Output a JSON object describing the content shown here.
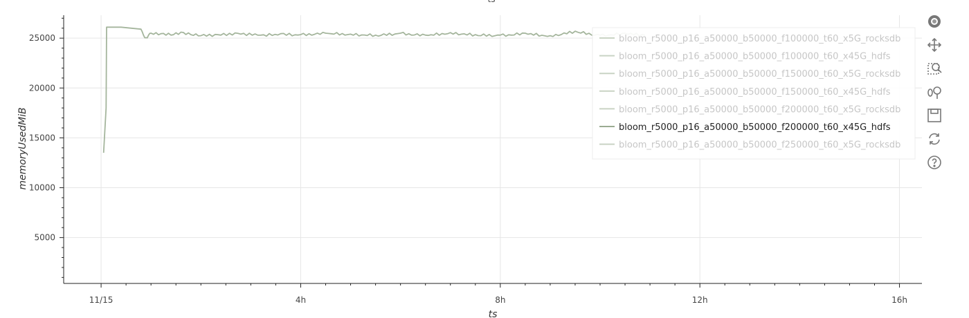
{
  "chart_data": {
    "type": "line",
    "title": "ts",
    "xlabel": "ts",
    "ylabel": "memoryUsedMiB",
    "x_tick_labels": [
      "11/15",
      "4h",
      "8h",
      "12h",
      "16h"
    ],
    "x_tick_hours": [
      0,
      4,
      8,
      12,
      16
    ],
    "xlim_hours": [
      -0.75,
      16.45
    ],
    "ylim": [
      400,
      27300
    ],
    "y_ticks": [
      5000,
      10000,
      15000,
      20000,
      25000
    ],
    "grid": true,
    "legend_placement": "top-right",
    "series": [
      {
        "name": "bloom_r5000_p16_a50000_b50000_f100000_t60_x5G_rocksdb",
        "visible": false
      },
      {
        "name": "bloom_r5000_p16_a50000_b50000_f100000_t60_x45G_hdfs",
        "visible": false
      },
      {
        "name": "bloom_r5000_p16_a50000_b50000_f150000_t60_x5G_rocksdb",
        "visible": false
      },
      {
        "name": "bloom_r5000_p16_a50000_b50000_f150000_t60_x45G_hdfs",
        "visible": false
      },
      {
        "name": "bloom_r5000_p16_a50000_b50000_f200000_t60_x5G_rocksdb",
        "visible": false
      },
      {
        "name": "bloom_r5000_p16_a50000_b50000_f200000_t60_x45G_hdfs",
        "visible": true,
        "x_hours": [
          0.05,
          0.1,
          0.11,
          0.12,
          0.4,
          0.8,
          0.85,
          0.9,
          0.95,
          1.0,
          1.2,
          1.4,
          1.6,
          1.8,
          2.0,
          2.4,
          2.8,
          3.2,
          3.6,
          4.0,
          4.5,
          5.0,
          5.5,
          6.0,
          6.5,
          7.0,
          7.5,
          8.0,
          8.5,
          9.0,
          9.5,
          10.0,
          10.5,
          10.9
        ],
        "values": [
          13500,
          18000,
          26100,
          26100,
          26100,
          25900,
          25300,
          25050,
          25300,
          25500,
          25450,
          25300,
          25600,
          25350,
          25250,
          25300,
          25400,
          25300,
          25450,
          25350,
          25500,
          25400,
          25300,
          25500,
          25300,
          25550,
          25350,
          25300,
          25500,
          25250,
          25700,
          25300,
          25500,
          25300
        ]
      },
      {
        "name": "bloom_r5000_p16_a50000_b50000_f250000_t60_x5G_rocksdb",
        "visible": false
      }
    ],
    "colors": {
      "line": "#a4b59c",
      "legend_line_muted": "#c9d3c4",
      "legend_text_muted": "#c6c6c6",
      "legend_text_active": "#222222",
      "legend_line_active": "#9aab92"
    }
  },
  "toolbar": [
    {
      "icon": "bokeh-logo-icon"
    },
    {
      "icon": "pan-icon"
    },
    {
      "icon": "box-zoom-icon"
    },
    {
      "icon": "wheel-zoom-icon"
    },
    {
      "icon": "save-icon"
    },
    {
      "icon": "reset-icon"
    },
    {
      "icon": "help-icon"
    }
  ]
}
